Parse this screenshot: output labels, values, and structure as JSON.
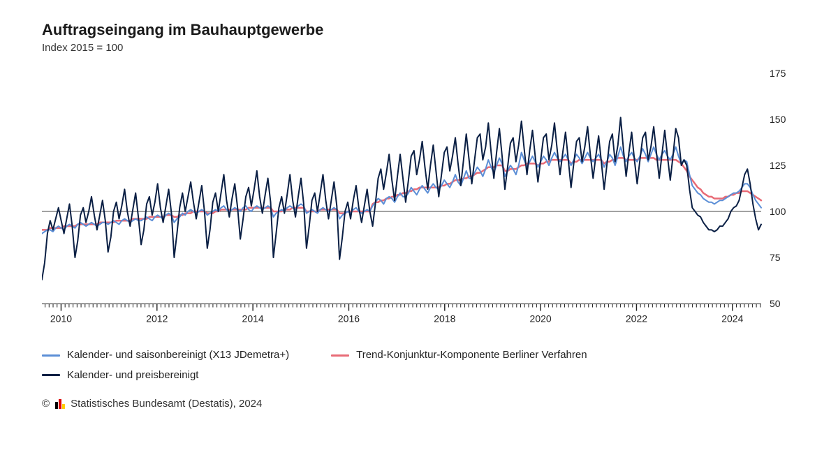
{
  "title": "Auftragseingang im Bauhauptgewerbe",
  "subtitle": "Index 2015 = 100",
  "footer": {
    "copyright": "©",
    "org": "Statistisches Bundesamt (Destatis), 2024"
  },
  "chart": {
    "type": "line",
    "background_color": "#ffffff",
    "axis_color": "#222222",
    "ref_line_color": "#444444",
    "ref_line_value": 100,
    "title_fontsize": 22,
    "subtitle_fontsize": 15,
    "label_fontsize": 14,
    "line_width": 2,
    "x": {
      "min": 2009.6,
      "max": 2024.6,
      "step_months": 1,
      "major_ticks": [
        2010,
        2012,
        2014,
        2016,
        2018,
        2020,
        2022,
        2024
      ],
      "minor_tick_interval": 0.0833
    },
    "y": {
      "min": 50,
      "max": 175,
      "ticks": [
        50,
        75,
        100,
        125,
        150,
        175
      ]
    },
    "series": [
      {
        "id": "seasonal",
        "label": "Kalender- und saisonbereinigt (X13 JDemetra+)",
        "color": "#5b8ed6",
        "width": 2,
        "values": [
          88,
          89,
          90,
          90,
          89,
          91,
          92,
          91,
          90,
          92,
          93,
          92,
          91,
          93,
          94,
          93,
          92,
          93,
          94,
          93,
          92,
          93,
          94,
          94,
          93,
          94,
          95,
          94,
          93,
          95,
          96,
          95,
          94,
          95,
          96,
          95,
          95,
          96,
          97,
          96,
          95,
          97,
          98,
          97,
          96,
          98,
          99,
          98,
          94,
          96,
          97,
          99,
          98,
          100,
          101,
          100,
          99,
          100,
          101,
          100,
          98,
          99,
          100,
          101,
          100,
          102,
          103,
          101,
          100,
          101,
          102,
          101,
          100,
          102,
          103,
          101,
          100,
          102,
          103,
          102,
          101,
          102,
          103,
          102,
          97,
          99,
          100,
          101,
          100,
          102,
          103,
          102,
          101,
          103,
          104,
          103,
          99,
          100,
          101,
          100,
          99,
          101,
          102,
          101,
          100,
          101,
          102,
          101,
          96,
          98,
          99,
          100,
          99,
          101,
          102,
          100,
          99,
          100,
          101,
          100,
          103,
          105,
          107,
          106,
          104,
          107,
          108,
          107,
          105,
          108,
          110,
          108,
          108,
          110,
          113,
          111,
          109,
          112,
          114,
          112,
          110,
          113,
          115,
          113,
          112,
          114,
          117,
          115,
          113,
          116,
          120,
          116,
          114,
          118,
          122,
          118,
          118,
          121,
          124,
          122,
          119,
          123,
          128,
          124,
          121,
          125,
          129,
          126,
          119,
          122,
          125,
          123,
          120,
          125,
          132,
          128,
          124,
          127,
          130,
          127,
          124,
          127,
          130,
          128,
          125,
          129,
          132,
          129,
          127,
          129,
          131,
          128,
          125,
          128,
          131,
          129,
          126,
          129,
          132,
          129,
          127,
          129,
          131,
          128,
          124,
          127,
          131,
          129,
          125,
          130,
          135,
          130,
          127,
          130,
          132,
          129,
          127,
          130,
          134,
          131,
          127,
          131,
          135,
          131,
          128,
          131,
          133,
          130,
          128,
          131,
          135,
          130,
          126,
          128,
          127,
          120,
          114,
          112,
          110,
          109,
          107,
          106,
          105,
          105,
          104,
          105,
          106,
          106,
          107,
          108,
          109,
          110,
          110,
          111,
          113,
          115,
          115,
          113,
          109,
          106,
          104,
          102
        ]
      },
      {
        "id": "trend",
        "label": "Trend-Konjunktur-Komponente Berliner Verfahren",
        "color": "#e86b76",
        "width": 2.5,
        "values": [
          90,
          90,
          90,
          91,
          91,
          91,
          91,
          91,
          92,
          92,
          92,
          92,
          92,
          93,
          93,
          93,
          93,
          93,
          93,
          93,
          93,
          94,
          94,
          94,
          94,
          94,
          94,
          95,
          95,
          95,
          95,
          95,
          95,
          96,
          96,
          96,
          96,
          96,
          96,
          97,
          97,
          97,
          97,
          97,
          97,
          98,
          98,
          98,
          97,
          97,
          98,
          98,
          99,
          99,
          99,
          100,
          100,
          100,
          100,
          100,
          99,
          99,
          99,
          100,
          100,
          101,
          101,
          101,
          101,
          101,
          101,
          101,
          101,
          101,
          101,
          102,
          102,
          102,
          102,
          102,
          102,
          102,
          102,
          102,
          100,
          100,
          100,
          100,
          101,
          101,
          101,
          102,
          102,
          102,
          102,
          102,
          100,
          100,
          100,
          100,
          100,
          101,
          101,
          101,
          101,
          101,
          101,
          101,
          99,
          99,
          99,
          100,
          100,
          100,
          100,
          100,
          100,
          100,
          100,
          100,
          104,
          105,
          105,
          106,
          106,
          107,
          107,
          108,
          108,
          109,
          109,
          110,
          110,
          111,
          111,
          112,
          112,
          113,
          113,
          113,
          113,
          113,
          113,
          113,
          113,
          114,
          114,
          115,
          115,
          116,
          117,
          117,
          117,
          118,
          118,
          119,
          119,
          120,
          121,
          121,
          122,
          123,
          124,
          124,
          124,
          125,
          125,
          125,
          122,
          122,
          123,
          123,
          123,
          124,
          125,
          125,
          126,
          126,
          126,
          126,
          125,
          126,
          126,
          127,
          127,
          128,
          128,
          128,
          128,
          128,
          128,
          128,
          126,
          127,
          127,
          128,
          128,
          128,
          128,
          128,
          128,
          128,
          128,
          128,
          126,
          127,
          127,
          128,
          128,
          129,
          129,
          129,
          128,
          128,
          128,
          128,
          128,
          129,
          129,
          129,
          129,
          129,
          129,
          128,
          128,
          128,
          128,
          128,
          128,
          128,
          128,
          127,
          126,
          124,
          122,
          119,
          117,
          115,
          113,
          112,
          110,
          109,
          108,
          108,
          107,
          107,
          107,
          107,
          108,
          108,
          109,
          109,
          110,
          110,
          111,
          111,
          111,
          110,
          109,
          108,
          107,
          106
        ]
      },
      {
        "id": "price",
        "label": "Kalender- und preisbereinigt",
        "color": "#0a1f44",
        "width": 2,
        "values": [
          63,
          72,
          88,
          95,
          90,
          96,
          102,
          95,
          88,
          96,
          104,
          92,
          75,
          84,
          98,
          102,
          94,
          100,
          108,
          98,
          90,
          98,
          106,
          95,
          78,
          86,
          100,
          105,
          96,
          103,
          112,
          100,
          92,
          101,
          110,
          97,
          82,
          90,
          104,
          108,
          98,
          105,
          115,
          102,
          94,
          103,
          112,
          99,
          75,
          88,
          102,
          110,
          100,
          108,
          116,
          105,
          96,
          105,
          114,
          100,
          80,
          90,
          105,
          110,
          100,
          110,
          120,
          106,
          97,
          107,
          115,
          102,
          85,
          96,
          108,
          113,
          103,
          112,
          122,
          108,
          99,
          109,
          118,
          105,
          75,
          88,
          102,
          108,
          99,
          109,
          120,
          106,
          97,
          108,
          118,
          104,
          80,
          92,
          106,
          110,
          100,
          110,
          120,
          106,
          96,
          106,
          116,
          103,
          74,
          86,
          100,
          105,
          96,
          106,
          114,
          102,
          94,
          103,
          112,
          100,
          92,
          104,
          118,
          123,
          112,
          121,
          131,
          117,
          106,
          119,
          131,
          118,
          105,
          117,
          130,
          133,
          120,
          128,
          138,
          124,
          112,
          125,
          136,
          122,
          108,
          120,
          132,
          135,
          122,
          130,
          140,
          126,
          114,
          128,
          142,
          128,
          115,
          128,
          140,
          142,
          128,
          135,
          148,
          132,
          118,
          132,
          145,
          130,
          112,
          124,
          137,
          140,
          127,
          136,
          149,
          134,
          120,
          133,
          144,
          130,
          116,
          128,
          140,
          142,
          128,
          136,
          148,
          133,
          120,
          132,
          143,
          128,
          113,
          126,
          138,
          140,
          127,
          135,
          146,
          131,
          118,
          130,
          141,
          127,
          112,
          125,
          138,
          142,
          127,
          136,
          151,
          134,
          119,
          132,
          143,
          128,
          115,
          128,
          140,
          143,
          128,
          135,
          146,
          132,
          118,
          131,
          144,
          130,
          117,
          130,
          145,
          140,
          125,
          128,
          125,
          112,
          102,
          100,
          98,
          97,
          94,
          92,
          90,
          90,
          89,
          90,
          92,
          92,
          94,
          96,
          100,
          102,
          103,
          106,
          113,
          120,
          123,
          115,
          104,
          96,
          90,
          93
        ]
      }
    ],
    "legend": {
      "position": "bottom",
      "rows": [
        [
          "seasonal",
          "trend"
        ],
        [
          "price"
        ]
      ]
    }
  }
}
